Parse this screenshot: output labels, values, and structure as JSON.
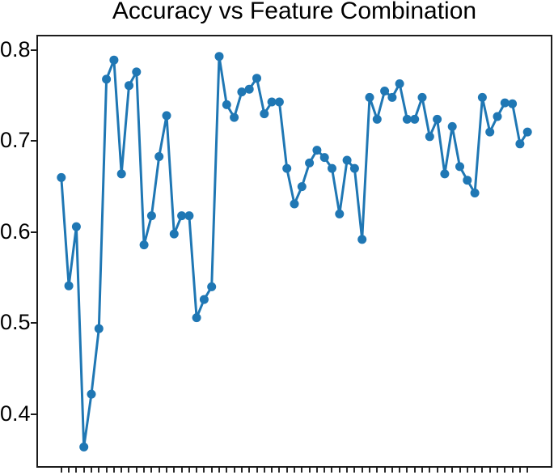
{
  "chart_data": {
    "type": "line",
    "title": "Accuracy vs Feature Combination",
    "xlabel": "",
    "ylabel": "",
    "series": [
      {
        "name": "accuracy",
        "values": [
          0.66,
          0.541,
          0.606,
          0.364,
          0.422,
          0.494,
          0.768,
          0.789,
          0.664,
          0.761,
          0.776,
          0.586,
          0.618,
          0.683,
          0.728,
          0.598,
          0.618,
          0.618,
          0.506,
          0.526,
          0.54,
          0.793,
          0.74,
          0.726,
          0.754,
          0.757,
          0.769,
          0.73,
          0.743,
          0.743,
          0.67,
          0.631,
          0.65,
          0.676,
          0.69,
          0.682,
          0.67,
          0.62,
          0.679,
          0.67,
          0.592,
          0.748,
          0.724,
          0.755,
          0.748,
          0.763,
          0.724,
          0.724,
          0.748,
          0.705,
          0.724,
          0.664,
          0.716,
          0.672,
          0.657,
          0.643,
          0.748,
          0.71,
          0.727,
          0.742,
          0.741,
          0.697,
          0.71
        ]
      }
    ],
    "num_points": 63,
    "yticks": [
      0.8,
      0.7,
      0.6,
      0.5,
      0.4
    ],
    "ytick_labels": [
      "0.8",
      "0.7",
      "0.6",
      "0.5",
      "0.4"
    ],
    "ylim": [
      0.343,
      0.815
    ],
    "xlim": [
      -3.1,
      65.1
    ],
    "x_tick_count": 63,
    "x_tick_labels_visible": false,
    "grid": false,
    "legend": null,
    "marker": "circle",
    "line_color": "#1f77b4",
    "marker_color": "#1f77b4",
    "frame_color": "#1c1c1c",
    "text_color": "#000000",
    "background_color": "#ffffff"
  }
}
